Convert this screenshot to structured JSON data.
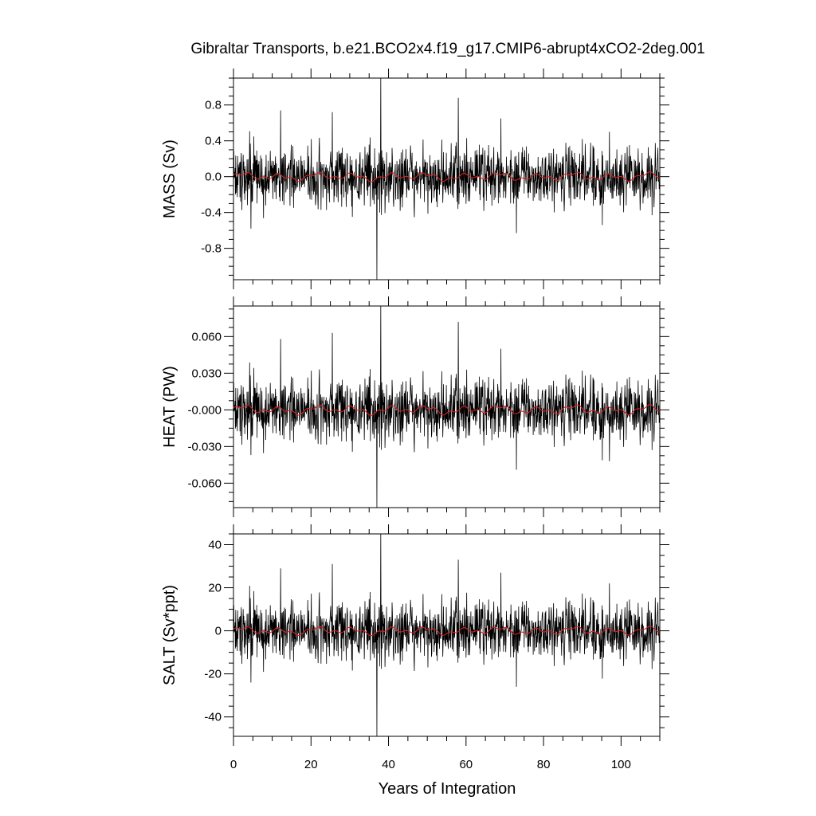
{
  "chart_data": {
    "type": "line",
    "title": "Gibraltar Transports, b.e21.BCO2x4.f19_g17.CMIP6-abrupt4xCO2-2deg.001",
    "xlabel": "Years of Integration",
    "xlim": [
      0,
      110
    ],
    "xticks": [
      0,
      20,
      40,
      60,
      80,
      100
    ],
    "xtick_labels": [
      "0",
      "20",
      "40",
      "60",
      "80",
      "100"
    ],
    "line_colors": {
      "raw": "#000000",
      "running_mean": "#d62020"
    },
    "panels": [
      {
        "name": "mass",
        "ylabel": "MASS (Sv)",
        "ylim": [
          -1.15,
          1.1
        ],
        "yticks": [
          0.8,
          0.4,
          0.0,
          -0.4,
          -0.8
        ],
        "ytick_labels": [
          "0.8",
          "0.4",
          "0.0",
          "-0.4",
          "-0.8"
        ],
        "amplitude": 0.17,
        "mean_amplitude": 0.05,
        "spikes": [
          {
            "x": 37.0,
            "y": -1.15
          },
          {
            "x": 38.0,
            "y": 1.1
          },
          {
            "x": 58.0,
            "y": 0.88
          },
          {
            "x": 12.2,
            "y": 0.74
          },
          {
            "x": 25.5,
            "y": 0.72
          },
          {
            "x": 4.5,
            "y": -0.58
          },
          {
            "x": 73.0,
            "y": -0.63
          },
          {
            "x": 69.0,
            "y": 0.65
          },
          {
            "x": 97.0,
            "y": 0.5
          }
        ]
      },
      {
        "name": "heat",
        "ylabel": "HEAT (PW)",
        "ylim": [
          -0.08,
          0.085
        ],
        "yticks": [
          0.06,
          0.03,
          0.0,
          -0.03,
          -0.06
        ],
        "ytick_labels": [
          "0.060",
          "0.030",
          "-0.000",
          "-0.030",
          "-0.060"
        ],
        "amplitude": 0.013,
        "mean_amplitude": 0.004,
        "spikes": [
          {
            "x": 37.0,
            "y": -0.08
          },
          {
            "x": 38.0,
            "y": 0.085
          },
          {
            "x": 58.0,
            "y": 0.072
          },
          {
            "x": 12.2,
            "y": 0.058
          },
          {
            "x": 25.5,
            "y": 0.063
          },
          {
            "x": 4.5,
            "y": -0.037
          },
          {
            "x": 73.0,
            "y": -0.049
          },
          {
            "x": 69.0,
            "y": 0.05
          },
          {
            "x": 97.0,
            "y": -0.042
          }
        ]
      },
      {
        "name": "salt",
        "ylabel": "SALT (Sv*ppt)",
        "ylim": [
          -49,
          45
        ],
        "yticks": [
          40,
          20,
          0,
          -20,
          -40
        ],
        "ytick_labels": [
          "40",
          "20",
          "0",
          "-20",
          "-40"
        ],
        "amplitude": 7.0,
        "mean_amplitude": 2.0,
        "spikes": [
          {
            "x": 37.0,
            "y": -49
          },
          {
            "x": 38.0,
            "y": 45
          },
          {
            "x": 58.0,
            "y": 33
          },
          {
            "x": 12.2,
            "y": 29
          },
          {
            "x": 25.5,
            "y": 31
          },
          {
            "x": 4.5,
            "y": -24
          },
          {
            "x": 73.0,
            "y": -26
          },
          {
            "x": 69.0,
            "y": 27
          },
          {
            "x": 97.0,
            "y": 22
          }
        ]
      }
    ]
  }
}
